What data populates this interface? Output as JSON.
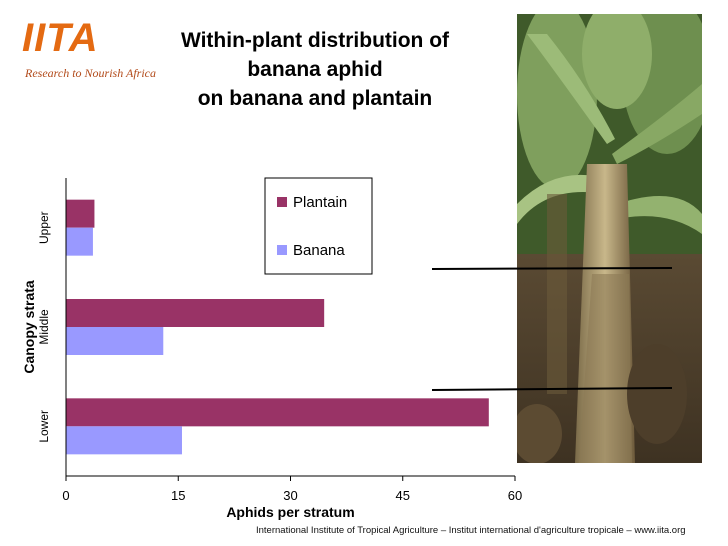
{
  "logo": {
    "name": "IITA",
    "tagline": "Research to Nourish Africa",
    "color": "#e46a12"
  },
  "title_lines": [
    "Within-plant distribution of",
    "banana aphid",
    "on banana and plantain"
  ],
  "footer": "International Institute of Tropical Agriculture – Institut international d'agriculture tropicale – www.iita.org",
  "chart_data": {
    "type": "bar",
    "orientation": "horizontal",
    "categories": [
      "Lower",
      "Middle",
      "Upper"
    ],
    "series": [
      {
        "name": "Plantain",
        "values": [
          56.5,
          34.5,
          3.8
        ],
        "color": "#993366"
      },
      {
        "name": "Banana",
        "values": [
          15.5,
          13,
          3.6
        ],
        "color": "#9999ff"
      }
    ],
    "xlabel": "Aphids per stratum",
    "ylabel": "Canopy strata",
    "xlim": [
      0,
      60
    ],
    "xticks": [
      0,
      15,
      30,
      45,
      60
    ],
    "grid": false,
    "legend_position": "top-right"
  }
}
